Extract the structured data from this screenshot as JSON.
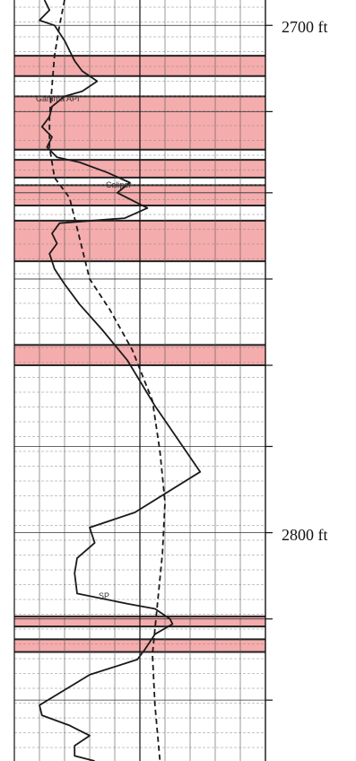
{
  "chart_data": {
    "type": "well-log",
    "y_axis": {
      "unit": "ft",
      "tick_labels": [
        {
          "value": 2700,
          "label": "2700 ft"
        },
        {
          "value": 2800,
          "label": "2800 ft"
        }
      ],
      "range": [
        2695,
        2845
      ],
      "tick_marks": [
        2700,
        2717,
        2733,
        2750,
        2767,
        2783,
        2800,
        2817,
        2833
      ]
    },
    "grid": true,
    "highlight_color": "#f4a3a3",
    "curve_color": "#1a1a1a",
    "curve_labels": [
      {
        "text": "Gamma API",
        "depth": 2715
      },
      {
        "text": "Caliper",
        "depth": 2732
      },
      {
        "text": "SP",
        "depth": 2813
      }
    ],
    "shaded_intervals": [
      [
        2706,
        2710
      ],
      [
        2714,
        2724.5
      ],
      [
        2726.5,
        2730
      ],
      [
        2731.5,
        2735.5
      ],
      [
        2738.5,
        2746.5
      ],
      [
        2763,
        2767
      ],
      [
        2816.5,
        2818.5
      ],
      [
        2821,
        2823.5
      ]
    ],
    "series": [
      {
        "name": "Gamma API",
        "style": "solid",
        "x": [
          12,
          14,
          10,
          16,
          20,
          22,
          24,
          27,
          33,
          27,
          20,
          15,
          14,
          11,
          15,
          13,
          17,
          26,
          37,
          46,
          41,
          53,
          44,
          18,
          15,
          17,
          14,
          16,
          20,
          26,
          35,
          45,
          56,
          74,
          48,
          30,
          32,
          25,
          24,
          25,
          45,
          56,
          62,
          63,
          56,
          52,
          49,
          30,
          20,
          10,
          11,
          22,
          30,
          24,
          24,
          32
        ],
        "y": [
          2695,
          2697,
          2699,
          2700,
          2703,
          2705,
          2707,
          2709,
          2711,
          2713,
          2714,
          2716,
          2718,
          2720,
          2722,
          2724,
          2726,
          2727,
          2729,
          2731,
          2733,
          2736,
          2738,
          2739,
          2741,
          2743,
          2745,
          2748,
          2751,
          2755,
          2760,
          2766,
          2775,
          2788,
          2796,
          2799,
          2802,
          2805,
          2808,
          2812,
          2814,
          2815,
          2817,
          2818,
          2820,
          2823,
          2825,
          2828,
          2831,
          2834,
          2836,
          2838,
          2840,
          2842,
          2844,
          2845
        ]
      },
      {
        "name": "Caliper",
        "style": "dashed",
        "x": [
          20,
          18,
          16,
          15,
          14,
          14,
          16,
          22,
          24,
          26,
          28,
          30,
          38,
          47,
          55,
          58,
          60,
          59,
          57,
          55,
          56,
          58
        ],
        "y": [
          2695,
          2700,
          2706,
          2712,
          2718,
          2724,
          2730,
          2734,
          2738,
          2742,
          2746,
          2750,
          2756,
          2764,
          2774,
          2784,
          2794,
          2804,
          2814,
          2824,
          2834,
          2845
        ]
      }
    ]
  }
}
